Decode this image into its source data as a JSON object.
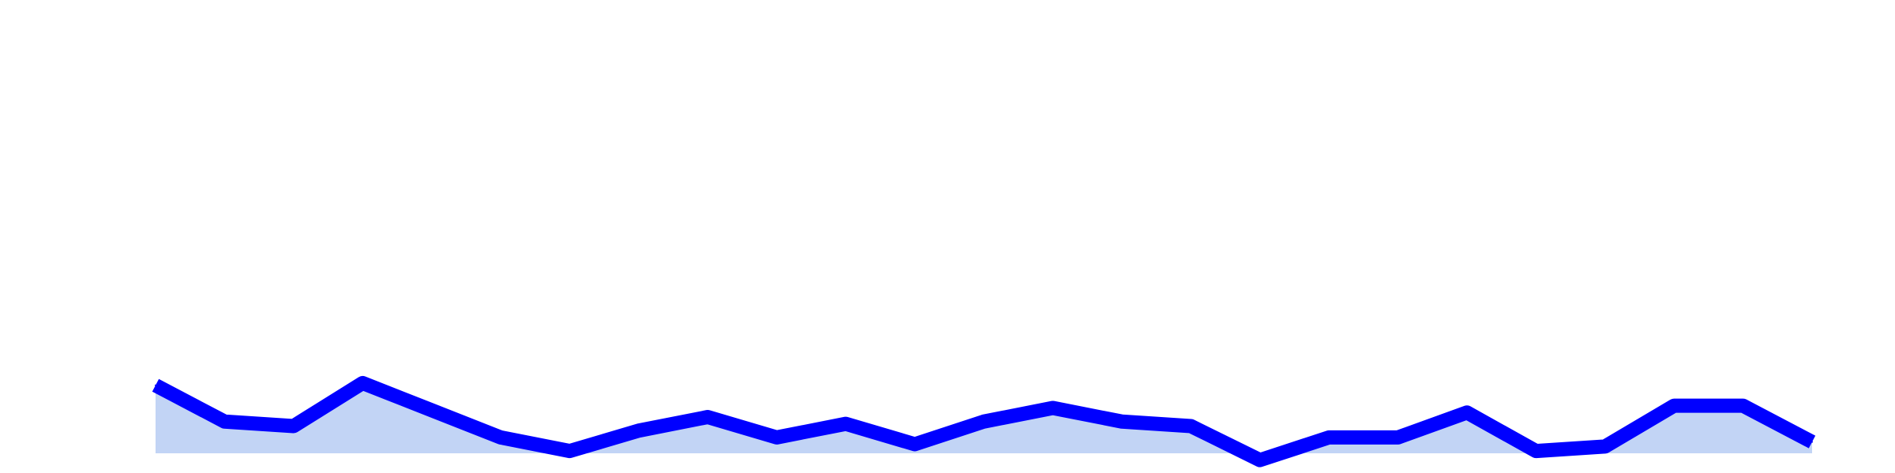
{
  "chart_data": {
    "type": "area",
    "title": "",
    "xlabel": "",
    "ylabel": "",
    "grid": false,
    "legend": "none",
    "ylim": [
      0,
      100
    ],
    "x": [
      0,
      1,
      2,
      3,
      4,
      5,
      6,
      7,
      8,
      9,
      10,
      11,
      12,
      13,
      14,
      15,
      16,
      17,
      18,
      19,
      20,
      21,
      22,
      23,
      24
    ],
    "series": [
      {
        "values": [
          15.0,
          7.0,
          6.0,
          15.5,
          9.5,
          3.5,
          0.5,
          5.0,
          8.0,
          3.5,
          6.5,
          2.0,
          7.0,
          10.0,
          7.0,
          6.0,
          -1.5,
          3.5,
          3.5,
          9.0,
          0.5,
          1.5,
          10.5,
          10.5,
          2.5
        ],
        "line_color": "#0000ff",
        "fill_color": "#c2d4f5"
      }
    ]
  }
}
